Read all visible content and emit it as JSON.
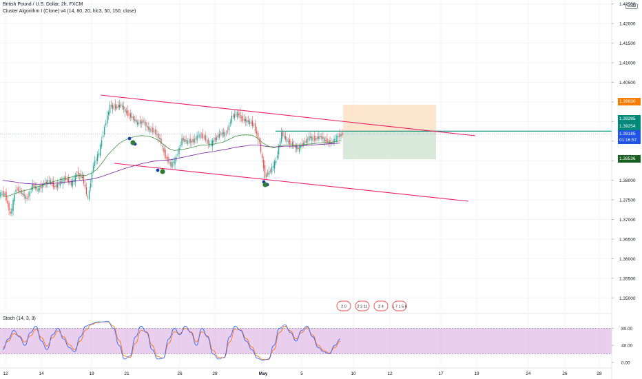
{
  "header": {
    "title": "British Pound / U.S. Dollar, 2h, FXCM",
    "indicator": "Cluster Algorithm I (Clone) v4 (14, 80, 20, hlc3, 50, 150, close)",
    "stoch_label": "Stoch (14, 3, 3)",
    "currency": "USD"
  },
  "chart_data": {
    "type": "line",
    "price_axis": {
      "ticks": [
        "1.42500",
        "1.42000",
        "1.41500",
        "1.41000",
        "1.40500",
        "1.40000",
        "1.39500",
        "1.39000",
        "1.38500",
        "1.38000",
        "1.37500",
        "1.37000",
        "1.36500",
        "1.36000",
        "1.35500",
        "1.35000"
      ],
      "range": [
        1.346,
        1.426
      ]
    },
    "time_axis": {
      "ticks": [
        "12",
        "14",
        "19",
        "21",
        "26",
        "28",
        "May",
        "5",
        "10",
        "12",
        "17",
        "19",
        "24",
        "26",
        "28"
      ]
    },
    "stoch_axis": {
      "ticks": [
        "80.00",
        "40.00",
        "0.00"
      ],
      "range": [
        0,
        100
      ],
      "bands": [
        20,
        80
      ]
    },
    "price_series": [
      1.3765,
      1.3712,
      1.378,
      1.3768,
      1.3752,
      1.3788,
      1.3775,
      1.379,
      1.38,
      1.3782,
      1.3795,
      1.3805,
      1.379,
      1.3815,
      1.3808,
      1.3752,
      1.384,
      1.387,
      1.3935,
      1.399,
      1.3986,
      1.3992,
      1.3972,
      1.396,
      1.3945,
      1.395,
      1.393,
      1.3925,
      1.3905,
      1.386,
      1.3838,
      1.3858,
      1.3905,
      1.3898,
      1.39,
      1.3915,
      1.391,
      1.389,
      1.3905,
      1.392,
      1.3918,
      1.3962,
      1.397,
      1.3955,
      1.395,
      1.394,
      1.3895,
      1.381,
      1.3825,
      1.385,
      1.392,
      1.39,
      1.389,
      1.388,
      1.3895,
      1.391,
      1.3905,
      1.3912,
      1.39,
      1.3895,
      1.391,
      1.3918
    ],
    "ma_fast": [
      1.376,
      1.376,
      1.3765,
      1.377,
      1.3774,
      1.3778,
      1.3782,
      1.3787,
      1.3792,
      1.3796,
      1.38,
      1.3804,
      1.3807,
      1.381,
      1.3813,
      1.3812,
      1.3818,
      1.3828,
      1.3845,
      1.3865,
      1.388,
      1.3893,
      1.3902,
      1.3908,
      1.3912,
      1.3914,
      1.3913,
      1.391,
      1.3903,
      1.3892,
      1.3881,
      1.3876,
      1.3878,
      1.388,
      1.3883,
      1.3887,
      1.389,
      1.389,
      1.3892,
      1.3895,
      1.3898,
      1.3905,
      1.3912,
      1.3915,
      1.3916,
      1.3915,
      1.3908,
      1.3895,
      1.3887,
      1.3883,
      1.3888,
      1.389,
      1.389,
      1.3889,
      1.389,
      1.3892,
      1.3893,
      1.3895,
      1.3896,
      1.3896,
      1.3898,
      1.3901
    ],
    "ma_slow": [
      1.38,
      1.3798,
      1.3796,
      1.3794,
      1.3792,
      1.3791,
      1.379,
      1.379,
      1.3791,
      1.3792,
      1.3793,
      1.3795,
      1.3796,
      1.3798,
      1.38,
      1.3801,
      1.3803,
      1.3806,
      1.381,
      1.3815,
      1.382,
      1.3825,
      1.383,
      1.3834,
      1.3838,
      1.3842,
      1.3845,
      1.3848,
      1.385,
      1.3851,
      1.3852,
      1.3854,
      1.3857,
      1.386,
      1.3863,
      1.3866,
      1.3869,
      1.3871,
      1.3873,
      1.3876,
      1.3878,
      1.3881,
      1.3884,
      1.3886,
      1.3888,
      1.389,
      1.389,
      1.3888,
      1.3886,
      1.3885,
      1.3886,
      1.3887,
      1.3887,
      1.3887,
      1.3888,
      1.3889,
      1.389,
      1.3891,
      1.3892,
      1.3893,
      1.3894,
      1.3895
    ],
    "stoch_k": [
      30,
      55,
      75,
      60,
      40,
      70,
      85,
      50,
      30,
      65,
      80,
      55,
      35,
      25,
      60,
      85,
      90,
      95,
      95,
      96,
      80,
      40,
      8,
      15,
      60,
      85,
      70,
      30,
      8,
      10,
      55,
      80,
      65,
      85,
      70,
      40,
      80,
      60,
      20,
      8,
      12,
      60,
      85,
      75,
      50,
      30,
      10,
      5,
      8,
      40,
      80,
      88,
      70,
      50,
      75,
      85,
      60,
      35,
      25,
      20,
      40,
      55
    ],
    "stoch_d": [
      35,
      50,
      68,
      62,
      48,
      62,
      78,
      58,
      38,
      58,
      74,
      60,
      42,
      30,
      50,
      76,
      88,
      93,
      95,
      95,
      85,
      52,
      15,
      12,
      45,
      75,
      72,
      40,
      14,
      10,
      45,
      72,
      68,
      80,
      72,
      48,
      72,
      62,
      28,
      12,
      11,
      48,
      78,
      76,
      56,
      36,
      15,
      7,
      7,
      30,
      70,
      85,
      74,
      55,
      70,
      82,
      64,
      40,
      28,
      22,
      35,
      50
    ],
    "channel": {
      "upper": [
        [
          146,
          138
        ],
        [
          690,
          197
        ]
      ],
      "lower": [
        [
          166,
          237
        ],
        [
          680,
          292
        ]
      ]
    },
    "position": {
      "entry": 1.39254,
      "target": 1.3993,
      "stop": 1.38536
    },
    "levels": {
      "target": "1.39930",
      "upper": "1.39265",
      "entry": "1.39254",
      "current": "1.39185",
      "countdown": "01:16:57",
      "stop": "1.38536"
    },
    "event_marks": [
      "2 0",
      "2 2 11",
      "2 4",
      "1 7 1 5 8"
    ]
  },
  "colors": {
    "up": "#26a69a",
    "down": "#ef5350",
    "channel": "#e91e63",
    "ma_fast": "#388e3c",
    "ma_slow": "#7b1fa2",
    "stoch_k": "#2962ff",
    "stoch_d": "#ff6d00",
    "target_zone": "#fce2c4",
    "stop_zone": "#d4e6d5",
    "target_badge": "#f57c00",
    "entry_badge": "#00897b",
    "current_badge": "#1e53e5",
    "stop_badge": "#1b5e20"
  }
}
